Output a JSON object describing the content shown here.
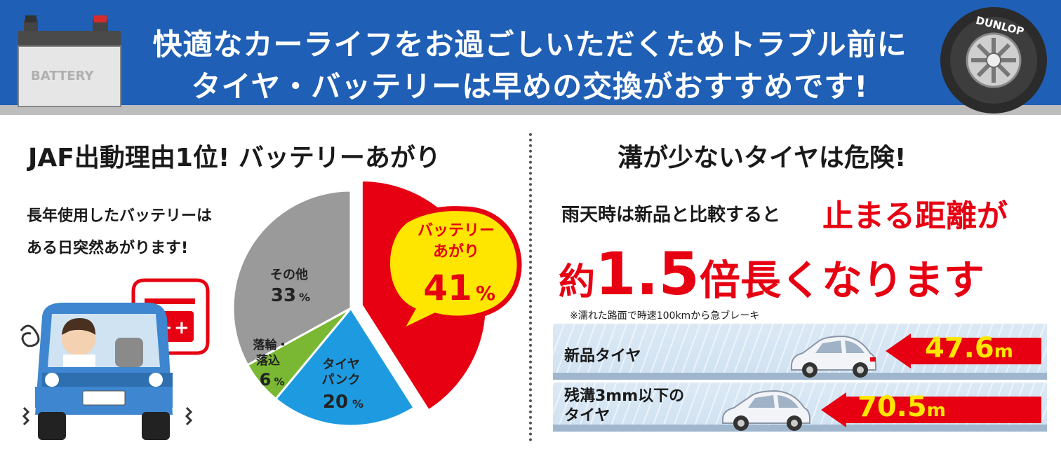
{
  "header": {
    "line1": "快適なカーライフをお過ごしいただくためトラブル前に",
    "line2": "タイヤ・バッテリーは早めの交換がおすすめです!",
    "battery_label": "BATTERY",
    "tire_brand": "DUNLOP"
  },
  "battery_section": {
    "title": "JAF出動理由1位! バッテリーあがり",
    "desc_line1": "長年使用したバッテリーは",
    "desc_line2": "ある日突然あがります!",
    "chart_data": {
      "type": "pie",
      "title": "",
      "slices": [
        {
          "label": "バッテリーあがり",
          "value": 41,
          "color": "#e60012"
        },
        {
          "label": "タイヤパンク",
          "value": 20,
          "color": "#1e9be0"
        },
        {
          "label": "落輪・落込",
          "value": 6,
          "color": "#7ab833"
        },
        {
          "label": "その他",
          "value": 33,
          "color": "#9a9a9a"
        }
      ],
      "callout": {
        "line1": "バッテリー",
        "line2": "あがり",
        "value": "41",
        "unit": "%"
      },
      "labels": {
        "other_name": "その他",
        "other_value": "33",
        "fall_name1": "落輪・",
        "fall_name2": "落込",
        "fall_value": "6",
        "tire_name1": "タイヤ",
        "tire_name2": "パンク",
        "tire_value": "20",
        "unit": "%"
      }
    }
  },
  "tire_section": {
    "title": "溝が少ないタイヤは危険!",
    "rain_text": "雨天時は新品と比較すると",
    "stop_text": "止まる距離が",
    "big_prefix": "約",
    "big_number": "1.5",
    "big_suffix": "倍長くなります",
    "note": "※濡れた路面で時速100kmから急ブレーキ",
    "lanes": [
      {
        "label": "新品タイヤ",
        "distance": "47.6",
        "unit": "m"
      },
      {
        "label_line1": "残溝3mm以下の",
        "label_line2": "タイヤ",
        "distance": "70.5",
        "unit": "m"
      }
    ]
  },
  "colors": {
    "banner_blue": "#1f5fb5",
    "accent_red": "#e60012",
    "highlight_yellow": "#ffe600"
  }
}
